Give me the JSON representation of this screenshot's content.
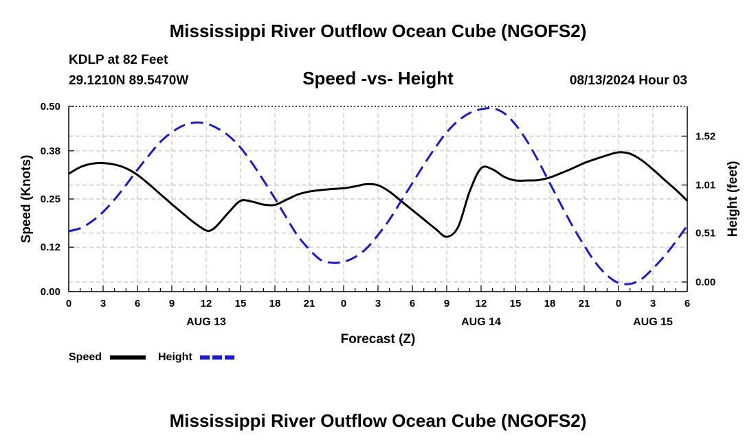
{
  "page": {
    "title": "Mississippi River Outflow Ocean Cube (NGOFS2)",
    "footer_title": "Mississippi River Outflow Ocean Cube (NGOFS2)",
    "station": "KDLP at 82 Feet",
    "location": "29.1210N  89.5470W",
    "datetime": "08/13/2024 Hour 03"
  },
  "chart_data": {
    "type": "line",
    "title": "Speed -vs- Height",
    "xlabel": "Forecast (Z)",
    "ylabel": "Speed (Knots)",
    "y2label": "Height (feet)",
    "x_range": [
      0,
      54
    ],
    "x_ticks": [
      0,
      3,
      6,
      9,
      12,
      15,
      18,
      21,
      24,
      27,
      30,
      33,
      36,
      39,
      42,
      45,
      48,
      51,
      54
    ],
    "x_tick_labels": [
      "0",
      "3",
      "6",
      "9",
      "12",
      "15",
      "18",
      "21",
      "0",
      "3",
      "6",
      "9",
      "12",
      "15",
      "18",
      "21",
      "0",
      "3",
      "6"
    ],
    "date_labels": [
      {
        "x": 12,
        "label": "AUG 13"
      },
      {
        "x": 36,
        "label": "AUG 14"
      },
      {
        "x": 51,
        "label": "AUG 15"
      }
    ],
    "ylim": [
      0,
      0.5
    ],
    "y_ticks": [
      0.0,
      0.12,
      0.25,
      0.38,
      0.5
    ],
    "y_tick_labels": [
      "0.00",
      "0.12",
      "0.25",
      "0.38",
      "0.50"
    ],
    "y2lim": [
      -0.1,
      1.83
    ],
    "y2_ticks": [
      0.0,
      0.51,
      1.01,
      1.52
    ],
    "y2_tick_labels": [
      "0.00",
      "0.51",
      "1.01",
      "1.52"
    ],
    "grid": true,
    "legend_position": "bottom-left",
    "series": [
      {
        "name": "Speed",
        "axis": "left",
        "color": "#000000",
        "style": "solid",
        "x": [
          0,
          1,
          2,
          3,
          4,
          5,
          6,
          7,
          8,
          9,
          10,
          11,
          12,
          12.5,
          13,
          14,
          15,
          16,
          17,
          18,
          19,
          20,
          21,
          22,
          23,
          24,
          25,
          26,
          27,
          28,
          29,
          30,
          31,
          32,
          33,
          34,
          35,
          36,
          37,
          38,
          39,
          40,
          41,
          42,
          43,
          44,
          45,
          46,
          47,
          48,
          49,
          50,
          51,
          52,
          53,
          54
        ],
        "y": [
          0.318,
          0.336,
          0.345,
          0.347,
          0.343,
          0.333,
          0.315,
          0.29,
          0.263,
          0.236,
          0.21,
          0.185,
          0.165,
          0.167,
          0.18,
          0.215,
          0.245,
          0.243,
          0.235,
          0.234,
          0.248,
          0.262,
          0.27,
          0.274,
          0.277,
          0.279,
          0.284,
          0.29,
          0.287,
          0.27,
          0.245,
          0.22,
          0.195,
          0.17,
          0.148,
          0.175,
          0.27,
          0.333,
          0.33,
          0.31,
          0.3,
          0.3,
          0.301,
          0.308,
          0.32,
          0.333,
          0.347,
          0.358,
          0.368,
          0.376,
          0.372,
          0.355,
          0.33,
          0.302,
          0.275,
          0.245
        ]
      },
      {
        "name": "Height",
        "axis": "right",
        "color": "#1a1acc",
        "style": "dashed",
        "x": [
          0,
          1,
          2,
          3,
          4,
          5,
          6,
          7,
          8,
          9,
          10,
          11,
          12,
          13,
          14,
          15,
          16,
          17,
          18,
          19,
          20,
          21,
          22,
          23,
          24,
          25,
          26,
          27,
          28,
          29,
          30,
          31,
          32,
          33,
          34,
          35,
          36,
          37,
          38,
          39,
          40,
          41,
          42,
          43,
          44,
          45,
          46,
          47,
          48,
          49,
          50,
          51,
          52,
          53,
          54
        ],
        "y": [
          0.53,
          0.56,
          0.63,
          0.73,
          0.86,
          1.01,
          1.17,
          1.32,
          1.46,
          1.56,
          1.63,
          1.66,
          1.65,
          1.6,
          1.52,
          1.4,
          1.24,
          1.06,
          0.87,
          0.67,
          0.48,
          0.34,
          0.23,
          0.2,
          0.21,
          0.26,
          0.35,
          0.49,
          0.65,
          0.84,
          1.03,
          1.22,
          1.4,
          1.56,
          1.68,
          1.76,
          1.8,
          1.81,
          1.76,
          1.64,
          1.47,
          1.26,
          1.03,
          0.8,
          0.58,
          0.38,
          0.2,
          0.07,
          -0.01,
          -0.02,
          0.03,
          0.14,
          0.27,
          0.42,
          0.59
        ]
      }
    ]
  }
}
